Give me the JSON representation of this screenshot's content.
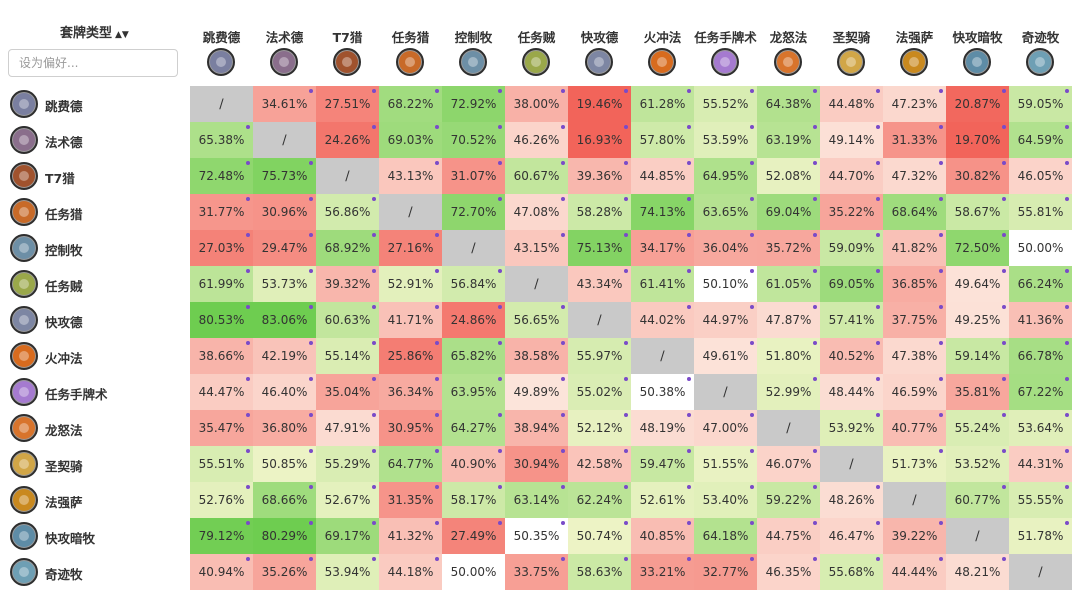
{
  "header": {
    "sort_label": "套牌类型",
    "sort_arrow": "▲▼",
    "filter_placeholder": "设为偏好..."
  },
  "self_marker": "∕",
  "decks": [
    {
      "name": "跳费德",
      "color": "#7a7fa0"
    },
    {
      "name": "法术德",
      "color": "#8a6e8c"
    },
    {
      "name": "T7猎",
      "color": "#a0522d"
    },
    {
      "name": "任务猎",
      "color": "#c86a28"
    },
    {
      "name": "控制牧",
      "color": "#6d8fa6"
    },
    {
      "name": "任务贼",
      "color": "#9aa84a"
    },
    {
      "name": "快攻德",
      "color": "#7d86a3"
    },
    {
      "name": "火冲法",
      "color": "#d86b1e"
    },
    {
      "name": "任务手牌术",
      "color": "#a57ad0"
    },
    {
      "name": "龙怒法",
      "color": "#d8742c"
    },
    {
      "name": "圣契骑",
      "color": "#d1a647"
    },
    {
      "name": "法强萨",
      "color": "#c9891f"
    },
    {
      "name": "快攻暗牧",
      "color": "#5e8ca6"
    },
    {
      "name": "奇迹牧",
      "color": "#6e9fb4"
    }
  ],
  "matrix": [
    [
      null,
      "34.61%",
      "27.51%",
      "68.22%",
      "72.92%",
      "38.00%",
      "19.46%",
      "61.28%",
      "55.52%",
      "64.38%",
      "44.48%",
      "47.23%",
      "20.87%",
      "59.05%"
    ],
    [
      "65.38%",
      null,
      "24.26%",
      "69.03%",
      "70.52%",
      "46.26%",
      "16.93%",
      "57.80%",
      "53.59%",
      "63.19%",
      "49.14%",
      "31.33%",
      "19.70%",
      "64.59%"
    ],
    [
      "72.48%",
      "75.73%",
      null,
      "43.13%",
      "31.07%",
      "60.67%",
      "39.36%",
      "44.85%",
      "64.95%",
      "52.08%",
      "44.70%",
      "47.32%",
      "30.82%",
      "46.05%"
    ],
    [
      "31.77%",
      "30.96%",
      "56.86%",
      null,
      "72.70%",
      "47.08%",
      "58.28%",
      "74.13%",
      "63.65%",
      "69.04%",
      "35.22%",
      "68.64%",
      "58.67%",
      "55.81%"
    ],
    [
      "27.03%",
      "29.47%",
      "68.92%",
      "27.16%",
      null,
      "43.15%",
      "75.13%",
      "34.17%",
      "36.04%",
      "35.72%",
      "59.09%",
      "41.82%",
      "72.50%",
      "50.00%"
    ],
    [
      "61.99%",
      "53.73%",
      "39.32%",
      "52.91%",
      "56.84%",
      null,
      "43.34%",
      "61.41%",
      "50.10%",
      "61.05%",
      "69.05%",
      "36.85%",
      "49.64%",
      "66.24%"
    ],
    [
      "80.53%",
      "83.06%",
      "60.63%",
      "41.71%",
      "24.86%",
      "56.65%",
      null,
      "44.02%",
      "44.97%",
      "47.87%",
      "57.41%",
      "37.75%",
      "49.25%",
      "41.36%"
    ],
    [
      "38.66%",
      "42.19%",
      "55.14%",
      "25.86%",
      "65.82%",
      "38.58%",
      "55.97%",
      null,
      "49.61%",
      "51.80%",
      "40.52%",
      "47.38%",
      "59.14%",
      "66.78%"
    ],
    [
      "44.47%",
      "46.40%",
      "35.04%",
      "36.34%",
      "63.95%",
      "49.89%",
      "55.02%",
      "50.38%",
      null,
      "52.99%",
      "48.44%",
      "46.59%",
      "35.81%",
      "67.22%"
    ],
    [
      "35.47%",
      "36.80%",
      "47.91%",
      "30.95%",
      "64.27%",
      "38.94%",
      "52.12%",
      "48.19%",
      "47.00%",
      null,
      "53.92%",
      "40.77%",
      "55.24%",
      "53.64%"
    ],
    [
      "55.51%",
      "50.85%",
      "55.29%",
      "64.77%",
      "40.90%",
      "30.94%",
      "42.58%",
      "59.47%",
      "51.55%",
      "46.07%",
      null,
      "51.73%",
      "53.52%",
      "44.31%"
    ],
    [
      "52.76%",
      "68.66%",
      "52.67%",
      "31.35%",
      "58.17%",
      "63.14%",
      "62.24%",
      "52.61%",
      "53.40%",
      "59.22%",
      "48.26%",
      null,
      "60.77%",
      "55.55%"
    ],
    [
      "79.12%",
      "80.29%",
      "69.17%",
      "41.32%",
      "27.49%",
      "50.35%",
      "50.74%",
      "40.85%",
      "64.18%",
      "44.75%",
      "46.47%",
      "39.22%",
      null,
      "51.78%"
    ],
    [
      "40.94%",
      "35.26%",
      "53.94%",
      "44.18%",
      "50.00%",
      "33.75%",
      "58.63%",
      "33.21%",
      "32.77%",
      "46.35%",
      "55.68%",
      "44.44%",
      "48.21%",
      null
    ]
  ]
}
